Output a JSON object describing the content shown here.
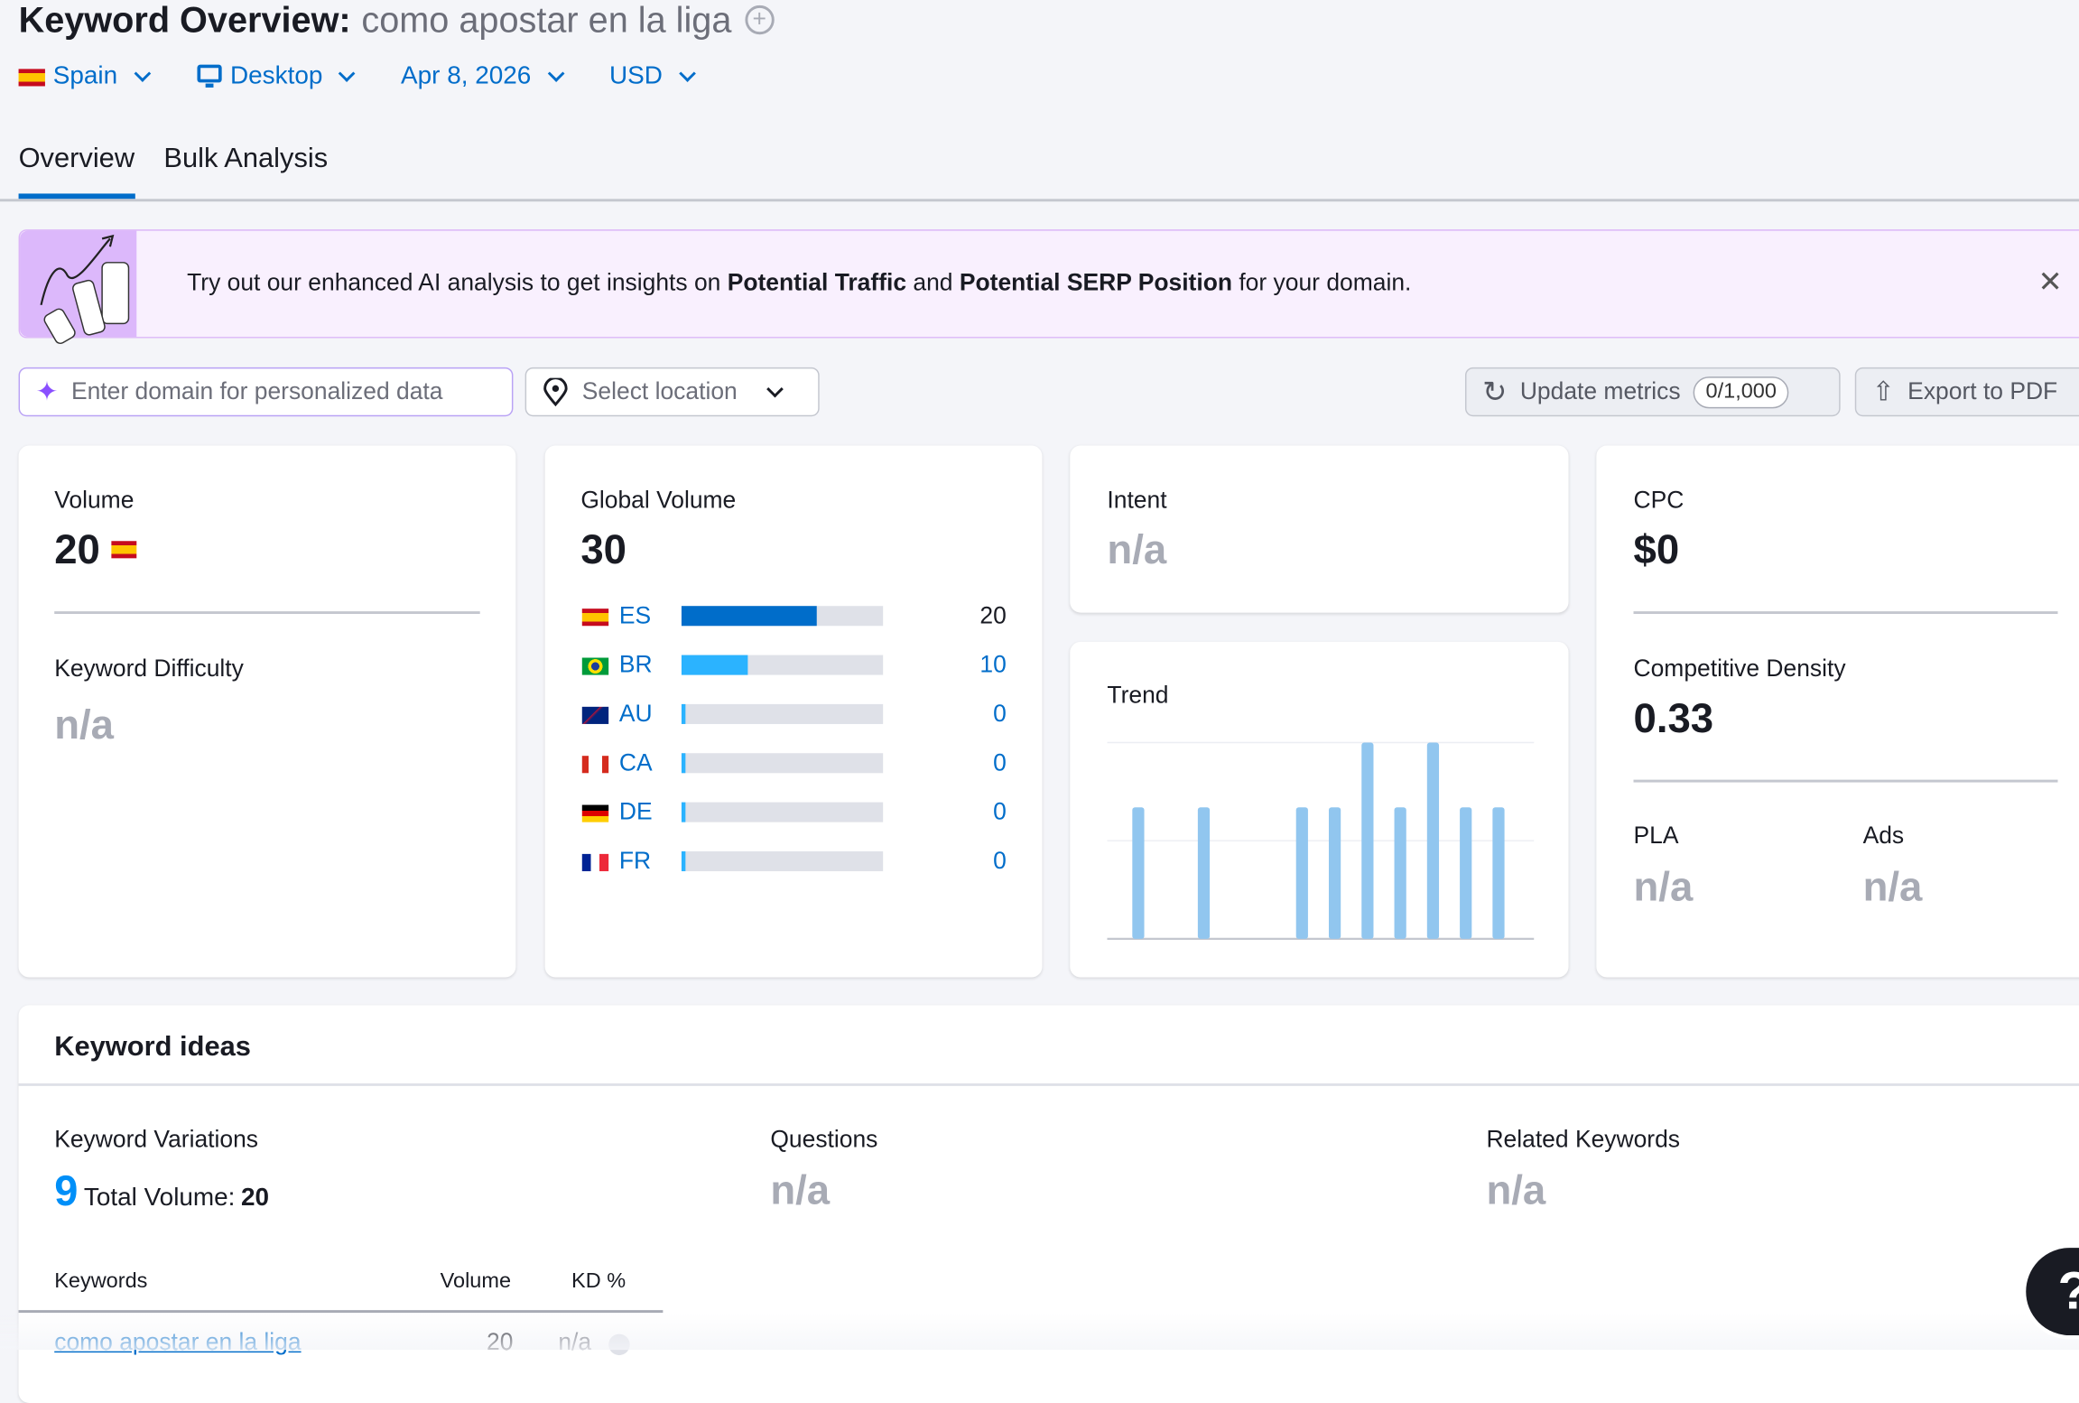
{
  "header": {
    "title": "Keyword Overview:",
    "keyword": "como apostar en la liga",
    "add_icon": "plus-circle-icon"
  },
  "filters": {
    "country": "Spain",
    "device": "Desktop",
    "date": "Apr 8, 2026",
    "currency": "USD"
  },
  "tabs": [
    {
      "label": "Overview",
      "active": true
    },
    {
      "label": "Bulk Analysis",
      "active": false
    }
  ],
  "banner": {
    "text_1": "Try out our enhanced AI analysis to get insights on ",
    "bold_1": "Potential Traffic",
    "text_2": " and ",
    "bold_2": "Potential SERP Position",
    "text_3": " for your domain."
  },
  "toolbar": {
    "domain_placeholder": "Enter domain for personalized data",
    "location_placeholder": "Select location",
    "update_label": "Update metrics",
    "update_count": "0/1,000",
    "export_label": "Export to PDF"
  },
  "volume": {
    "label": "Volume",
    "value": "20",
    "kd_label": "Keyword Difficulty",
    "kd_value": "n/a"
  },
  "global_volume": {
    "label": "Global Volume",
    "value": "30",
    "rows": [
      {
        "code": "ES",
        "value": "20",
        "fraction": 0.67,
        "color": "#006dca"
      },
      {
        "code": "BR",
        "value": "10",
        "fraction": 0.33,
        "color": "#2bb3ff"
      },
      {
        "code": "AU",
        "value": "0",
        "fraction": 0,
        "color": "#2bb3ff"
      },
      {
        "code": "CA",
        "value": "0",
        "fraction": 0,
        "color": "#2bb3ff"
      },
      {
        "code": "DE",
        "value": "0",
        "fraction": 0,
        "color": "#2bb3ff"
      },
      {
        "code": "FR",
        "value": "0",
        "fraction": 0,
        "color": "#2bb3ff"
      }
    ]
  },
  "intent": {
    "label": "Intent",
    "value": "n/a"
  },
  "trend": {
    "label": "Trend",
    "relative_values": [
      0.67,
      0,
      0.67,
      0,
      0,
      0.67,
      0.67,
      1,
      0.67,
      1,
      0.67,
      0.67
    ],
    "color": "#91c6ef"
  },
  "cpc": {
    "label": "CPC",
    "value": "$0",
    "cd_label": "Competitive Density",
    "cd_value": "0.33",
    "pla_label": "PLA",
    "pla_value": "n/a",
    "ads_label": "Ads",
    "ads_value": "n/a"
  },
  "ideas": {
    "title": "Keyword ideas",
    "variations_label": "Keyword Variations",
    "variations_count": "9",
    "total_volume_label": "Total Volume:",
    "total_volume": "20",
    "questions_label": "Questions",
    "questions_value": "n/a",
    "related_label": "Related Keywords",
    "related_value": "n/a",
    "columns": [
      "Keywords",
      "Volume",
      "KD %"
    ],
    "rows": [
      {
        "keyword": "como apostar en la liga",
        "volume": "20",
        "kd": "n/a"
      }
    ]
  },
  "help": {
    "label": "?"
  }
}
